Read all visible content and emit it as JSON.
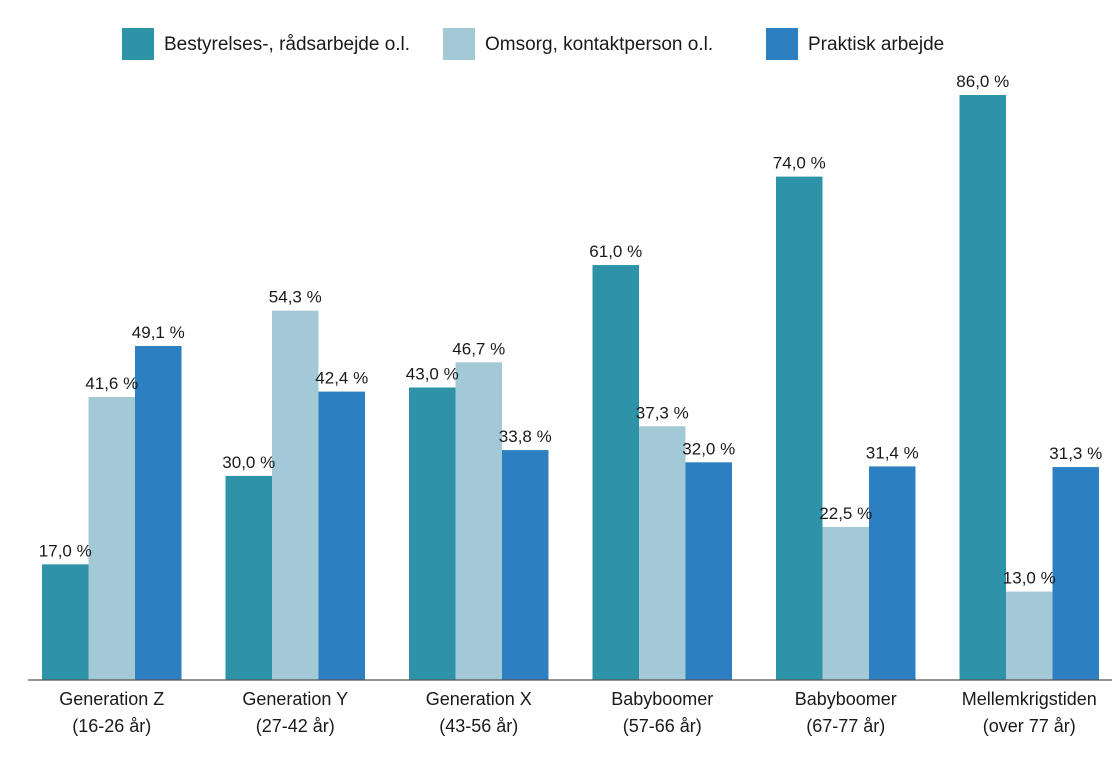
{
  "chart_data": {
    "type": "bar",
    "title": "",
    "xlabel": "",
    "ylabel": "",
    "ylim": [
      0,
      86
    ],
    "grid": false,
    "legend_position": "top",
    "categories": [
      [
        "Generation Z",
        "(16-26 år)"
      ],
      [
        "Generation Y",
        "(27-42 år)"
      ],
      [
        "Generation X",
        "(43-56 år)"
      ],
      [
        "Babyboomer",
        "(57-66 år)"
      ],
      [
        "Babyboomer",
        "(67-77 år)"
      ],
      [
        "Mellemkrigstiden",
        "(over 77 år)"
      ]
    ],
    "series": [
      {
        "name": "Bestyrelses-, rådsarbejde o.l.",
        "color": "#2e93a8",
        "values": [
          17.0,
          30.0,
          43.0,
          61.0,
          74.0,
          86.0
        ],
        "labels": [
          "17,0 %",
          "30,0 %",
          "43,0 %",
          "61,0 %",
          "74,0 %",
          "86,0 %"
        ]
      },
      {
        "name": "Omsorg, kontaktperson o.l.",
        "color": "#a3c8d6",
        "values": [
          41.6,
          54.3,
          46.7,
          37.3,
          22.5,
          13.0
        ],
        "labels": [
          "41,6 %",
          "54,3 %",
          "46,7 %",
          "37,3 %",
          "22,5 %",
          "13,0 %"
        ]
      },
      {
        "name": "Praktisk arbejde",
        "color": "#2c7fc1",
        "values": [
          49.1,
          42.4,
          33.8,
          32.0,
          31.4,
          31.3
        ],
        "labels": [
          "49,1 %",
          "42,4 %",
          "33,8 %",
          "32,0 %",
          "31,4 %",
          "31,3 %"
        ]
      }
    ]
  }
}
